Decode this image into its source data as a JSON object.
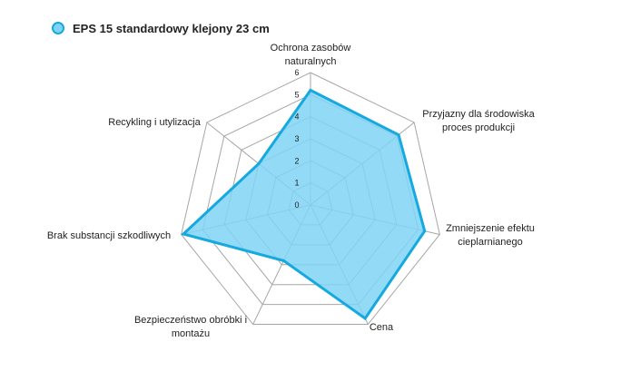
{
  "chart_data": {
    "type": "radar",
    "legend": {
      "placement": "top-left",
      "entries": [
        "EPS 15 standardowy klejony 23 cm"
      ]
    },
    "axes": [
      {
        "lines": [
          "Ochrona zasobów",
          "naturalnych"
        ]
      },
      {
        "lines": [
          "Przyjazny dla środowiska",
          "proces produkcji"
        ]
      },
      {
        "lines": [
          "Zmniejszenie efektu",
          "cieplarnianego"
        ]
      },
      {
        "lines": [
          "Cena"
        ]
      },
      {
        "lines": [
          "Bezpieczeństwo obróbki i",
          "montażu"
        ]
      },
      {
        "lines": [
          "Brak substancji szkodliwych"
        ]
      },
      {
        "lines": [
          "Recykling i utylizacja"
        ]
      }
    ],
    "range": [
      0,
      6
    ],
    "ticks": [
      "0",
      "1",
      "2",
      "3",
      "4",
      "5",
      "6"
    ],
    "grid": true,
    "series": [
      {
        "name": "EPS 15 standardowy klejony 23 cm",
        "values": [
          5.2,
          5.1,
          5.3,
          5.7,
          2.8,
          5.9,
          3.0
        ],
        "fill": "#7fd3f5",
        "stroke": "#16a9df"
      }
    ],
    "colors": {
      "grid": "#a6a6a6",
      "text": "#222222"
    }
  }
}
